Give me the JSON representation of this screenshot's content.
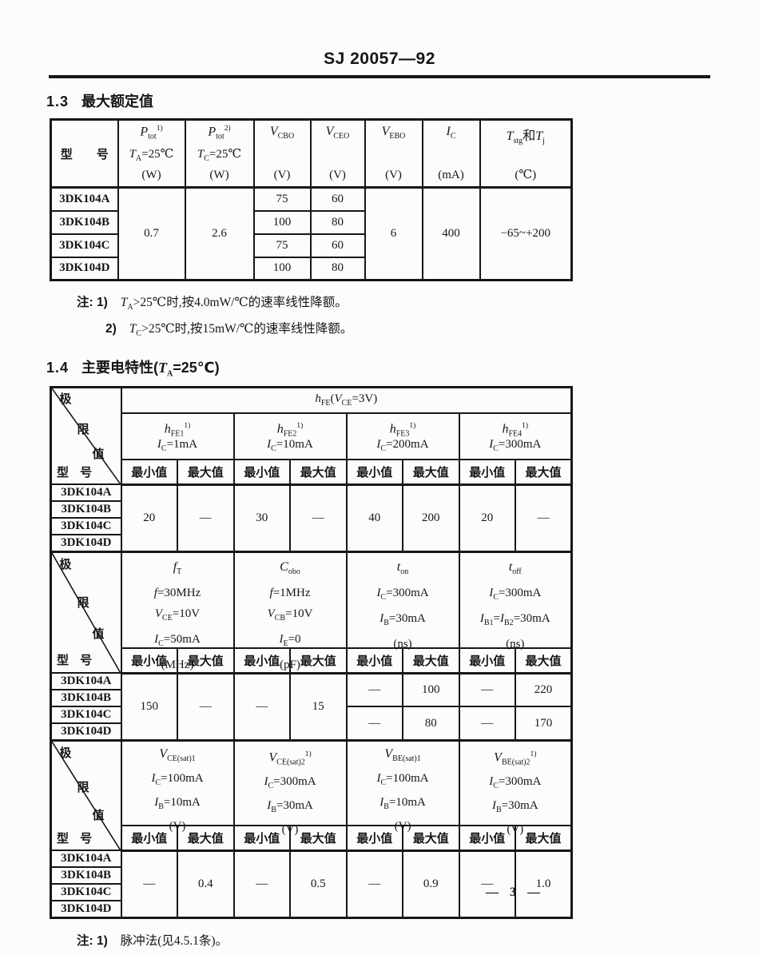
{
  "doc": {
    "standard_no": "SJ 20057—92",
    "page_number": "— 3 —"
  },
  "models": [
    "3DK104A",
    "3DK104B",
    "3DK104C",
    "3DK104D"
  ],
  "labels": {
    "min": "最小值",
    "max": "最大值"
  },
  "diag": {
    "a": "极",
    "b": "限",
    "c": "值",
    "model": "型 号"
  },
  "sec13": {
    "heading_no": "1.3",
    "heading_text": "最大额定值",
    "header": {
      "model_label": "型　　号",
      "cols": [
        {
          "sym": [
            {
              "t": "P",
              "i": 1
            },
            {
              "t": "tot",
              "f": "sub"
            },
            {
              "t": "1)",
              "f": "sup"
            }
          ],
          "cond": [
            {
              "t": "T",
              "i": 1
            },
            {
              "t": "A",
              "f": "sub"
            },
            {
              "t": "=25℃"
            }
          ],
          "unit": "(W)"
        },
        {
          "sym": [
            {
              "t": "P",
              "i": 1
            },
            {
              "t": "tot",
              "f": "sub"
            },
            {
              "t": "2)",
              "f": "sup"
            }
          ],
          "cond": [
            {
              "t": "T",
              "i": 1
            },
            {
              "t": "C",
              "f": "sub"
            },
            {
              "t": "=25℃"
            }
          ],
          "unit": "(W)"
        },
        {
          "sym": [
            {
              "t": "V",
              "i": 1
            },
            {
              "t": "CBO",
              "f": "sub"
            }
          ],
          "unit": "(V)"
        },
        {
          "sym": [
            {
              "t": "V",
              "i": 1
            },
            {
              "t": "CEO",
              "f": "sub"
            }
          ],
          "unit": "(V)"
        },
        {
          "sym": [
            {
              "t": "V",
              "i": 1
            },
            {
              "t": "EBO",
              "f": "sub"
            }
          ],
          "unit": "(V)"
        },
        {
          "sym": [
            {
              "t": "I",
              "i": 1
            },
            {
              "t": "C",
              "f": "sub"
            }
          ],
          "unit": "(mA)"
        },
        {
          "sym": [
            {
              "t": "T",
              "i": 1
            },
            {
              "t": "stg",
              "f": "sub"
            },
            {
              "t": "和"
            },
            {
              "t": "T",
              "i": 1
            },
            {
              "t": "j",
              "f": "sub"
            }
          ],
          "unit": "(℃)"
        }
      ]
    },
    "merged": {
      "ptot1": "0.7",
      "ptot2": "2.6",
      "vebo": "6",
      "ic": "400",
      "tstg": "−65~+200"
    },
    "vcbo": [
      "75",
      "100",
      "75",
      "100"
    ],
    "vceo": [
      "60",
      "80",
      "60",
      "80"
    ],
    "notes": [
      {
        "label": "注: 1)",
        "text": [
          {
            "t": "T",
            "i": 1
          },
          {
            "t": "A",
            "f": "sub"
          },
          {
            "t": ">25℃时,按4.0mW/℃的速率线性降额。"
          }
        ]
      },
      {
        "label": "2)",
        "text": [
          {
            "t": "T",
            "i": 1
          },
          {
            "t": "C",
            "f": "sub"
          },
          {
            "t": ">25℃时,按15mW/℃的速率线性降额。"
          }
        ]
      }
    ]
  },
  "sec14": {
    "heading_no": "1.4",
    "heading_text": [
      {
        "t": "主要电特性("
      },
      {
        "t": "T",
        "i": 1
      },
      {
        "t": "A",
        "f": "sub"
      },
      {
        "t": "=25℃)"
      }
    ],
    "t2": {
      "span_header": [
        {
          "t": "h",
          "i": 1
        },
        {
          "t": "FE",
          "f": "sub"
        },
        {
          "t": "("
        },
        {
          "t": "V",
          "i": 1
        },
        {
          "t": "CE",
          "f": "sub"
        },
        {
          "t": "=3V)"
        }
      ],
      "groups": [
        {
          "sym": [
            {
              "t": "h",
              "i": 1
            },
            {
              "t": "FE1",
              "f": "sub"
            },
            {
              "t": "1)",
              "f": "sup"
            }
          ],
          "cond": [
            {
              "t": "I",
              "i": 1
            },
            {
              "t": "C",
              "f": "sub"
            },
            {
              "t": "=1mA"
            }
          ]
        },
        {
          "sym": [
            {
              "t": "h",
              "i": 1
            },
            {
              "t": "FE2",
              "f": "sub"
            },
            {
              "t": "1)",
              "f": "sup"
            }
          ],
          "cond": [
            {
              "t": "I",
              "i": 1
            },
            {
              "t": "C",
              "f": "sub"
            },
            {
              "t": "=10mA"
            }
          ]
        },
        {
          "sym": [
            {
              "t": "h",
              "i": 1
            },
            {
              "t": "FE3",
              "f": "sub"
            },
            {
              "t": "1)",
              "f": "sup"
            }
          ],
          "cond": [
            {
              "t": "I",
              "i": 1
            },
            {
              "t": "C",
              "f": "sub"
            },
            {
              "t": "=200mA"
            }
          ]
        },
        {
          "sym": [
            {
              "t": "h",
              "i": 1
            },
            {
              "t": "FE4",
              "f": "sub"
            },
            {
              "t": "1)",
              "f": "sup"
            }
          ],
          "cond": [
            {
              "t": "I",
              "i": 1
            },
            {
              "t": "C",
              "f": "sub"
            },
            {
              "t": "=300mA"
            }
          ]
        }
      ],
      "values": [
        {
          "min": "20",
          "max": "—"
        },
        {
          "min": "30",
          "max": "—"
        },
        {
          "min": "40",
          "max": "200"
        },
        {
          "min": "20",
          "max": "—"
        }
      ]
    },
    "t3": {
      "groups": [
        {
          "sym": [
            {
              "t": "f",
              "i": 1
            },
            {
              "t": "T",
              "f": "sub"
            }
          ],
          "c1": [
            {
              "t": "f",
              "i": 1
            },
            {
              "t": "=30MHz"
            }
          ],
          "c2": [
            {
              "t": "V",
              "i": 1
            },
            {
              "t": "CE",
              "f": "sub"
            },
            {
              "t": "=10V"
            }
          ],
          "c3": [
            {
              "t": "I",
              "i": 1
            },
            {
              "t": "C",
              "f": "sub"
            },
            {
              "t": "=50mA"
            }
          ],
          "unit": "(MHz)"
        },
        {
          "sym": [
            {
              "t": "C",
              "i": 1
            },
            {
              "t": "obo",
              "f": "sub"
            }
          ],
          "c1": [
            {
              "t": "f",
              "i": 1
            },
            {
              "t": "=1MHz"
            }
          ],
          "c2": [
            {
              "t": "V",
              "i": 1
            },
            {
              "t": "CB",
              "f": "sub"
            },
            {
              "t": "=10V"
            }
          ],
          "c3": [
            {
              "t": "I",
              "i": 1
            },
            {
              "t": "E",
              "f": "sub"
            },
            {
              "t": "=0"
            }
          ],
          "unit": "(pF)"
        },
        {
          "sym": [
            {
              "t": "t",
              "i": 1
            },
            {
              "t": "on",
              "f": "sub"
            }
          ],
          "c1": [
            {
              "t": "I",
              "i": 1
            },
            {
              "t": "C",
              "f": "sub"
            },
            {
              "t": "=300mA"
            }
          ],
          "c2": [
            {
              "t": "I",
              "i": 1
            },
            {
              "t": "B",
              "f": "sub"
            },
            {
              "t": "=30mA"
            }
          ],
          "unit": "(ns)"
        },
        {
          "sym": [
            {
              "t": "t",
              "i": 1
            },
            {
              "t": "off",
              "f": "sub"
            }
          ],
          "c1": [
            {
              "t": "I",
              "i": 1
            },
            {
              "t": "C",
              "f": "sub"
            },
            {
              "t": "=300mA"
            }
          ],
          "c2": [
            {
              "t": "I",
              "i": 1
            },
            {
              "t": "B1",
              "f": "sub"
            },
            {
              "t": "="
            },
            {
              "t": "I",
              "i": 1
            },
            {
              "t": "B2",
              "f": "sub"
            },
            {
              "t": "=30mA"
            }
          ],
          "unit": "(ns)"
        }
      ],
      "ft": {
        "min": "150",
        "max": "—"
      },
      "cobo": {
        "min": "—",
        "max": "15"
      },
      "ton": [
        {
          "min": "—",
          "max": "100"
        },
        {
          "min": "—",
          "max": "80"
        }
      ],
      "toff": [
        {
          "min": "—",
          "max": "220"
        },
        {
          "min": "—",
          "max": "170"
        }
      ]
    },
    "t4": {
      "groups": [
        {
          "sym": [
            {
              "t": "V",
              "i": 1
            },
            {
              "t": "CE(sat)1",
              "f": "sub"
            }
          ],
          "c1": [
            {
              "t": "I",
              "i": 1
            },
            {
              "t": "C",
              "f": "sub"
            },
            {
              "t": "=100mA"
            }
          ],
          "c2": [
            {
              "t": "I",
              "i": 1
            },
            {
              "t": "B",
              "f": "sub"
            },
            {
              "t": "=10mA"
            }
          ],
          "unit": "(V)"
        },
        {
          "sym": [
            {
              "t": "V",
              "i": 1
            },
            {
              "t": "CE(sat)2",
              "f": "sub"
            },
            {
              "t": "1)",
              "f": "sup"
            }
          ],
          "c1": [
            {
              "t": "I",
              "i": 1
            },
            {
              "t": "C",
              "f": "sub"
            },
            {
              "t": "=300mA"
            }
          ],
          "c2": [
            {
              "t": "I",
              "i": 1
            },
            {
              "t": "B",
              "f": "sub"
            },
            {
              "t": "=30mA"
            }
          ],
          "unit": "(V)"
        },
        {
          "sym": [
            {
              "t": "V",
              "i": 1
            },
            {
              "t": "BE(sat)1",
              "f": "sub"
            }
          ],
          "c1": [
            {
              "t": "I",
              "i": 1
            },
            {
              "t": "C",
              "f": "sub"
            },
            {
              "t": "=100mA"
            }
          ],
          "c2": [
            {
              "t": "I",
              "i": 1
            },
            {
              "t": "B",
              "f": "sub"
            },
            {
              "t": "=10mA"
            }
          ],
          "unit": "(V)"
        },
        {
          "sym": [
            {
              "t": "V",
              "i": 1
            },
            {
              "t": "BE(sat)2",
              "f": "sub"
            },
            {
              "t": "1)",
              "f": "sup"
            }
          ],
          "c1": [
            {
              "t": "I",
              "i": 1
            },
            {
              "t": "C",
              "f": "sub"
            },
            {
              "t": "=300mA"
            }
          ],
          "c2": [
            {
              "t": "I",
              "i": 1
            },
            {
              "t": "B",
              "f": "sub"
            },
            {
              "t": "=30mA"
            }
          ],
          "unit": "(V)"
        }
      ],
      "values": [
        {
          "min": "—",
          "max": "0.4"
        },
        {
          "min": "—",
          "max": "0.5"
        },
        {
          "min": "—",
          "max": "0.9"
        },
        {
          "min": "—",
          "max": "1.0"
        }
      ]
    },
    "note": {
      "label": "注: 1)",
      "text": [
        {
          "t": "脉冲法(见4.5.1条)。"
        }
      ]
    }
  }
}
